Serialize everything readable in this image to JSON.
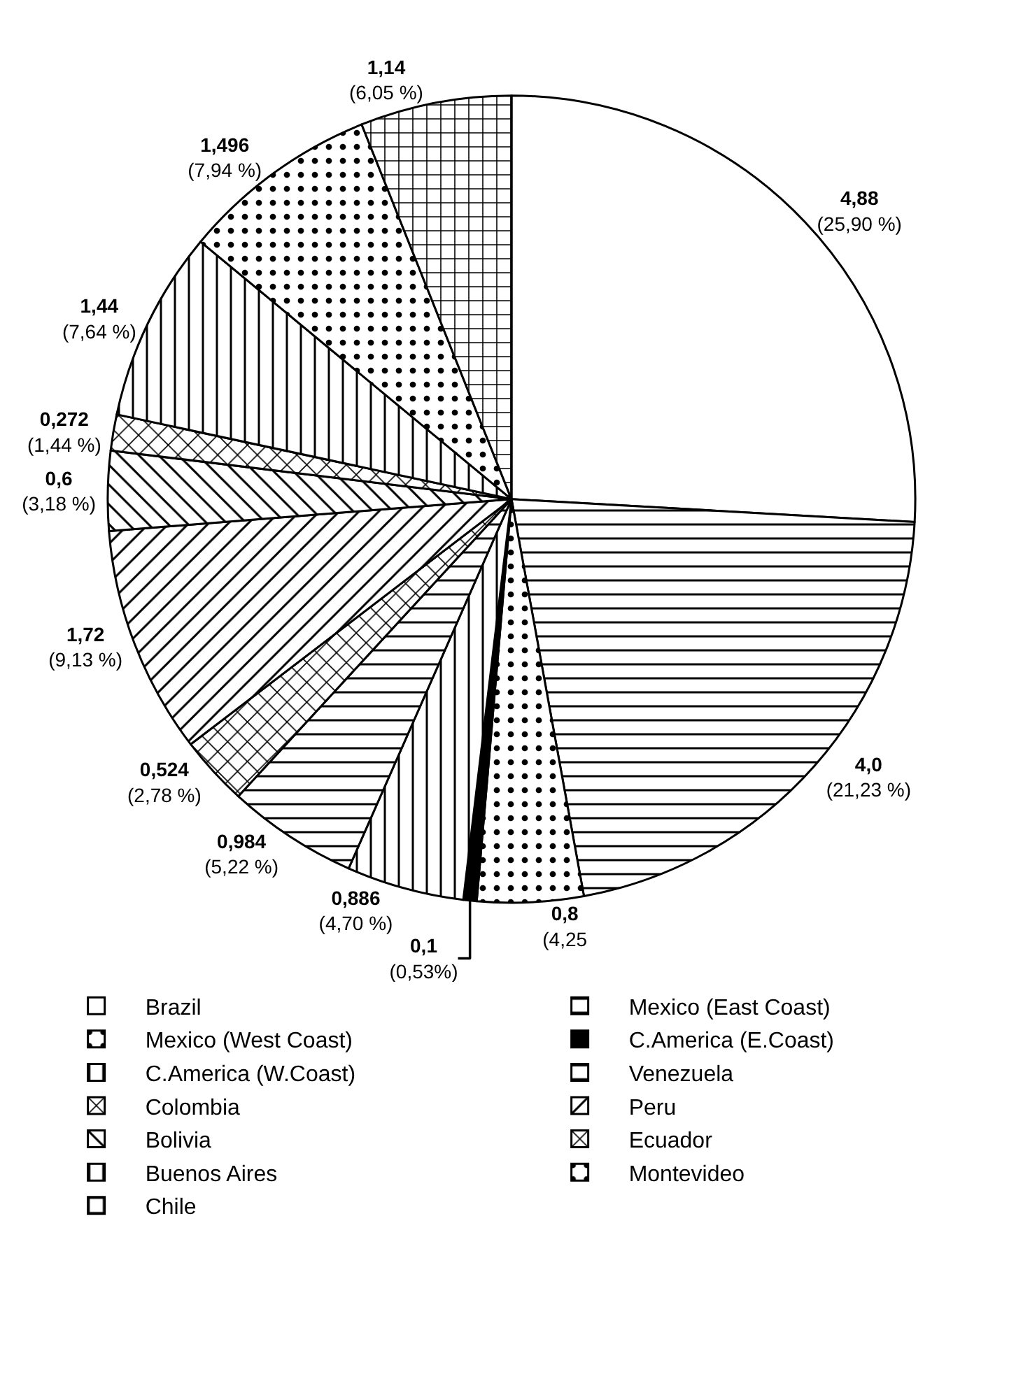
{
  "chart_data": {
    "type": "pie",
    "categories": [
      "Brazil",
      "Mexico (East Coast)",
      "Mexico (West Coast)",
      "C.America (E.Coast)",
      "C.America (W.Coast)",
      "Venezuela",
      "Colombia",
      "Peru",
      "Bolivia",
      "Ecuador",
      "Buenos Aires",
      "Montevideo",
      "Chile"
    ],
    "values": [
      4.88,
      4.0,
      0.8,
      0.1,
      0.886,
      0.984,
      0.524,
      1.72,
      0.6,
      0.272,
      1.44,
      1.496,
      1.14
    ],
    "value_labels": [
      "4,88\n(25,90 %)",
      "4,0\n(21,23 %)",
      "0,8\n(4,25",
      "0,1\n(0,53%)",
      "0,886\n(4,70 %)",
      "0,984\n(5,22 %)",
      "0,524\n(2,78 %)",
      "1,72\n(9,13 %)",
      "0,6\n(3,18 %)",
      "0,272\n(1,44 %)",
      "1,44\n(7,64 %)",
      "1,496\n(7,94 %)",
      "1,14\n(6,05 %)"
    ],
    "colors": [
      "#ffffff",
      "#000000",
      "#000000",
      "#000000",
      "#000000",
      "#000000",
      "#000000",
      "#000000",
      "#000000",
      "#000000",
      "#000000",
      "#000000",
      "#000000"
    ],
    "legend": "bottom"
  }
}
